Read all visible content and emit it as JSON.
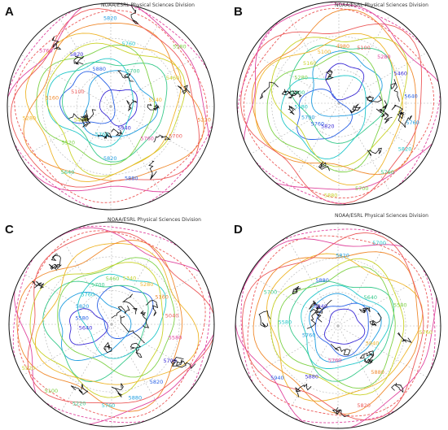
{
  "credit_text": "NOAA/ESRL Physical Sciences Division",
  "contour_colors": [
    "#3b2bd6",
    "#2a62e6",
    "#1f9de0",
    "#22c7c9",
    "#36c98a",
    "#7dd145",
    "#c9d229",
    "#efb52a",
    "#f08a2e",
    "#ec5a5a",
    "#e0459e"
  ],
  "panels": [
    {
      "letter": "A",
      "labels": [
        "5940",
        "5880",
        "5820",
        "5760",
        "5640",
        "5520",
        "5400",
        "5280",
        "5160",
        "5100",
        "5760",
        "5820",
        "5880",
        "5820",
        "5760",
        "5700",
        "5580",
        "5460",
        "5340",
        "5220",
        "5700",
        "5760"
      ]
    },
    {
      "letter": "B",
      "labels": [
        "5820",
        "5760",
        "5700",
        "5580",
        "5400",
        "5280",
        "5160",
        "5100",
        "4980",
        "5100",
        "5280",
        "5460",
        "5640",
        "5760",
        "5820",
        "5760",
        "5700",
        "5880"
      ]
    },
    {
      "letter": "C",
      "labels": [
        "5640",
        "5580",
        "5820",
        "5760",
        "5700",
        "5460",
        "5340",
        "5280",
        "5160",
        "5040",
        "5580",
        "5700",
        "5820",
        "5880",
        "5760",
        "5220",
        "5100",
        "5520"
      ]
    },
    {
      "letter": "D",
      "labels": [
        "5940",
        "5880",
        "5820",
        "5700",
        "5640",
        "5580",
        "5760",
        "5940",
        "5880",
        "5820",
        "5760",
        "5880",
        "5940",
        "5760",
        "5580",
        "5700"
      ]
    }
  ]
}
